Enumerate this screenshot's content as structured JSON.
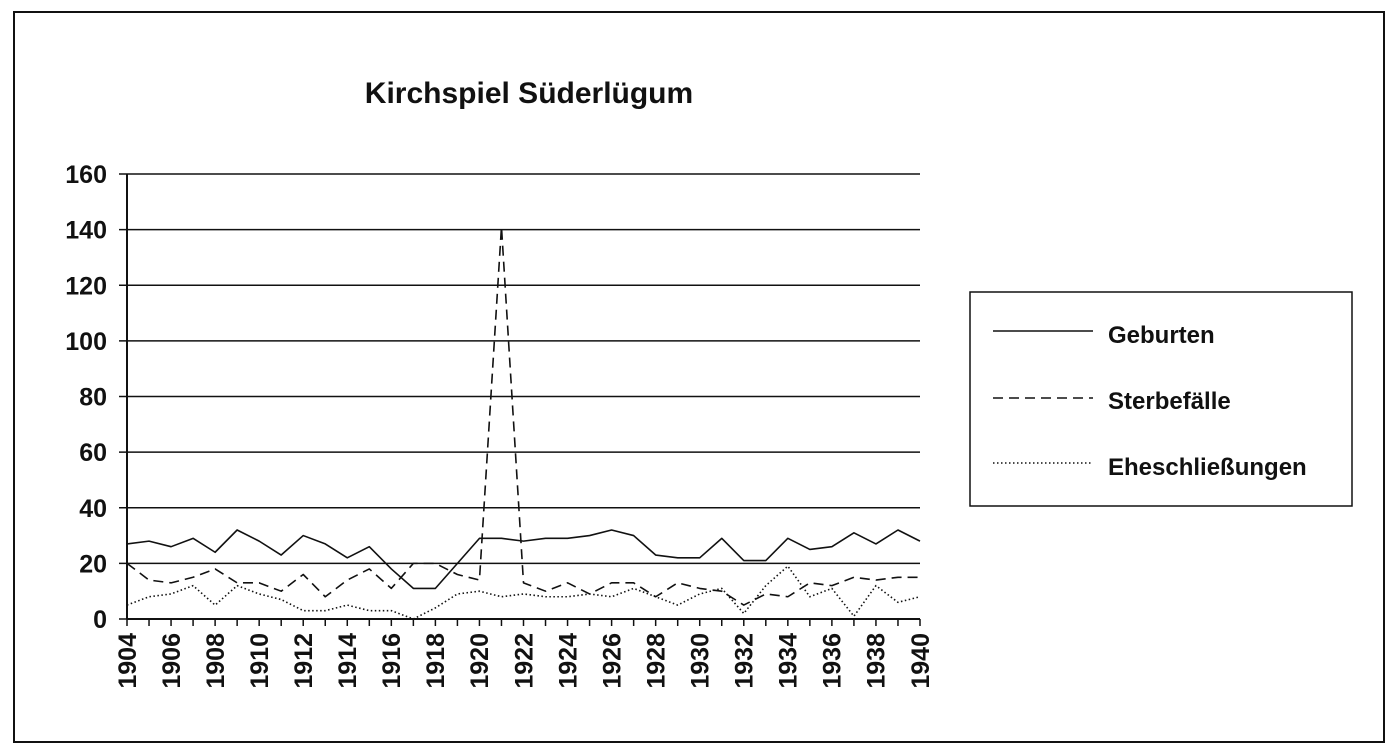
{
  "chart_data": {
    "type": "line",
    "title": "Kirchspiel Süderlügum",
    "xlabel": "",
    "ylabel": "",
    "ylim": [
      0,
      160
    ],
    "yticks": [
      "0",
      "20",
      "40",
      "60",
      "80",
      "100",
      "120",
      "140",
      "160"
    ],
    "grid": "horizontal",
    "legend_position": "right",
    "x": [
      1904,
      1905,
      1906,
      1907,
      1908,
      1909,
      1910,
      1911,
      1912,
      1913,
      1914,
      1915,
      1916,
      1917,
      1918,
      1919,
      1920,
      1921,
      1922,
      1923,
      1924,
      1925,
      1926,
      1927,
      1928,
      1929,
      1930,
      1931,
      1932,
      1933,
      1934,
      1935,
      1936,
      1937,
      1938,
      1939,
      1940
    ],
    "xtick_labels": [
      "1904",
      "1906",
      "1908",
      "1910",
      "1912",
      "1914",
      "1916",
      "1918",
      "1920",
      "1922",
      "1924",
      "1926",
      "1928",
      "1930",
      "1932",
      "1934",
      "1936",
      "1938",
      "1940"
    ],
    "series": [
      {
        "name": "Geburten",
        "style": "solid",
        "values": [
          27,
          28,
          26,
          29,
          24,
          32,
          28,
          23,
          30,
          27,
          22,
          26,
          18,
          11,
          11,
          20,
          29,
          29,
          28,
          29,
          29,
          30,
          32,
          30,
          23,
          22,
          22,
          29,
          21,
          21,
          29,
          25,
          26,
          31,
          27,
          32,
          28
        ]
      },
      {
        "name": "Sterbefälle",
        "style": "dashed",
        "values": [
          20,
          14,
          13,
          15,
          18,
          13,
          13,
          10,
          16,
          8,
          14,
          18,
          11,
          20,
          20,
          16,
          14,
          141,
          13,
          10,
          13,
          9,
          13,
          13,
          8,
          13,
          11,
          10,
          5,
          9,
          8,
          13,
          12,
          15,
          14,
          15,
          15
        ]
      },
      {
        "name": "Eheschließungen",
        "style": "dotted",
        "values": [
          5,
          8,
          9,
          12,
          5,
          12,
          9,
          7,
          3,
          3,
          5,
          3,
          3,
          0,
          4,
          9,
          10,
          8,
          9,
          8,
          8,
          9,
          8,
          11,
          8,
          5,
          9,
          11,
          2,
          12,
          19,
          8,
          11,
          1,
          12,
          6,
          8
        ]
      }
    ]
  }
}
